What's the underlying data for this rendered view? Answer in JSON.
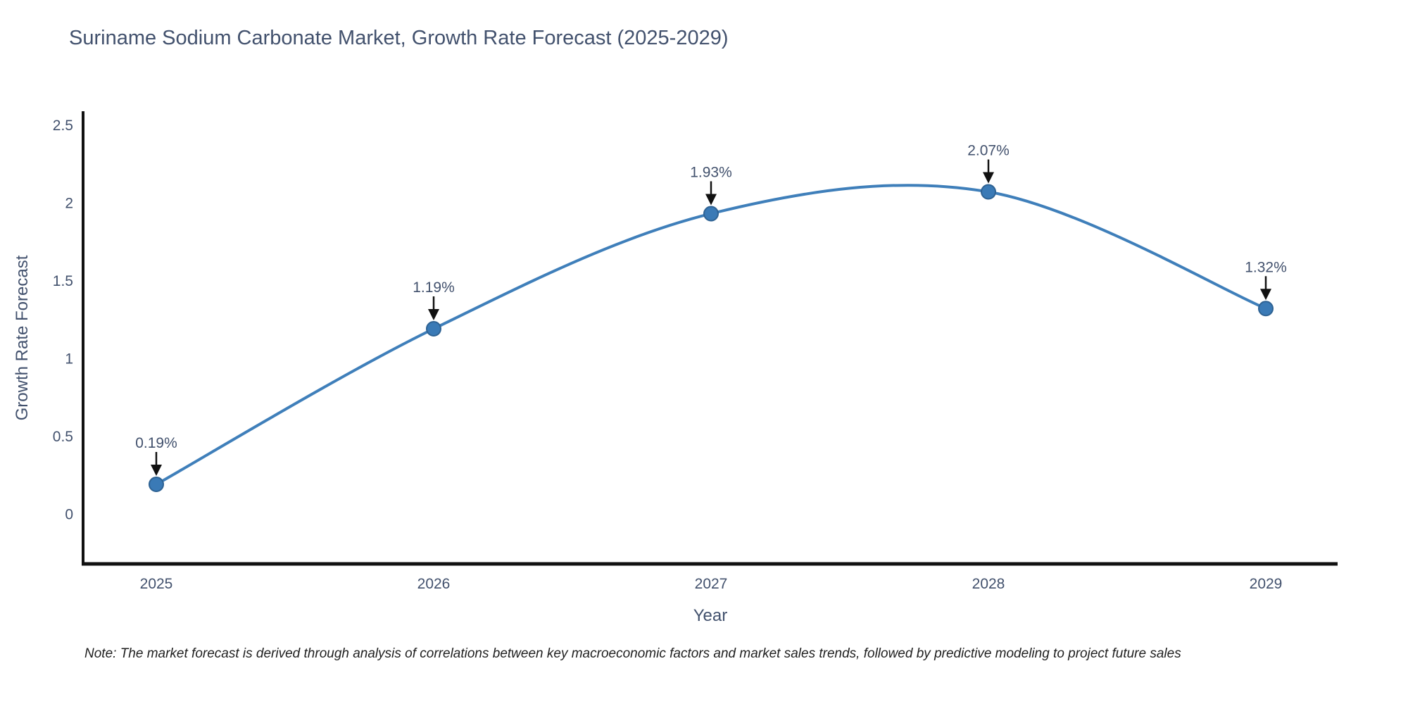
{
  "chart_data": {
    "type": "line",
    "line_shape": "spline",
    "title": "Suriname Sodium Carbonate Market, Growth Rate Forecast (2025-2029)",
    "xlabel": "Year",
    "ylabel": "Growth Rate Forecast",
    "categories": [
      "2025",
      "2026",
      "2027",
      "2028",
      "2029"
    ],
    "series": [
      {
        "name": "Growth Rate Forecast",
        "values": [
          0.19,
          1.19,
          1.93,
          2.07,
          1.32
        ]
      }
    ],
    "point_labels": [
      "0.19%",
      "1.19%",
      "1.93%",
      "2.07%",
      "1.32%"
    ],
    "yticks": [
      0,
      0.5,
      1,
      1.5,
      2,
      2.5
    ],
    "ylim": [
      -0.32,
      2.59
    ],
    "grid": false,
    "legend": "none",
    "annotations_have_arrows": true,
    "colors": {
      "line": "#3f7fba",
      "marker": "#3a7ab6",
      "marker_edge": "#2e6293",
      "axis": "#111111",
      "text": "#42516d",
      "annotation_arrow": "#111111",
      "note_text": "#1f1f1f"
    },
    "note": "Note: The market forecast is derived through analysis of correlations between key macroeconomic factors and market sales trends, followed by predictive modeling to project future sales"
  }
}
